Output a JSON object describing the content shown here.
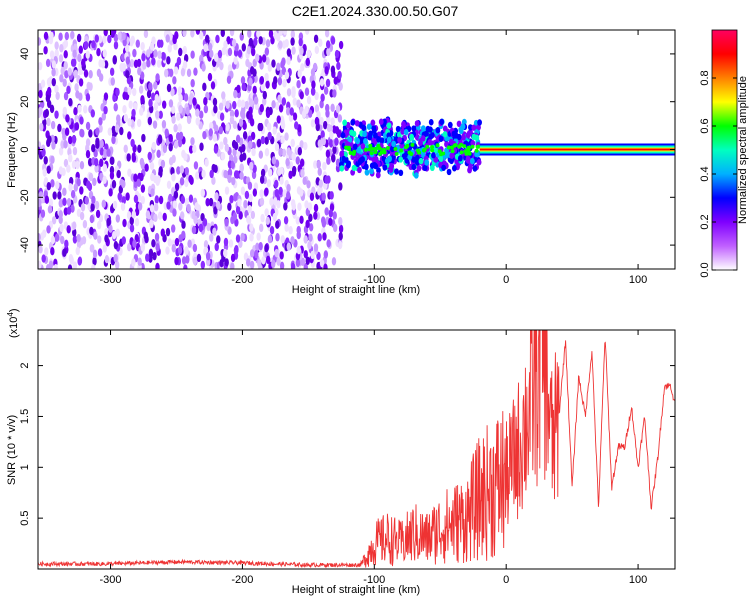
{
  "title": "C2E1.2024.330.00.50.G07",
  "chart_data": [
    {
      "type": "heatmap",
      "title": "C2E1.2024.330.00.50.G07",
      "xlabel": "Height of straight line (km)",
      "ylabel": "Frequency (Hz)",
      "xlim": [
        -355,
        128
      ],
      "ylim": [
        -50,
        50
      ],
      "xticks": [
        -300,
        -200,
        -100,
        0,
        100
      ],
      "yticks": [
        -40,
        -20,
        0,
        20,
        40
      ],
      "colorbar": {
        "label": "Normalized spectral amplitude",
        "range": [
          0.0,
          1.0
        ],
        "ticks": [
          "0.0",
          "0.2",
          "0.4",
          "0.6",
          "0.8"
        ],
        "colors": [
          "#ffffff",
          "#c060ff",
          "#7f00ff",
          "#0000ff",
          "#00b0ff",
          "#00ffc0",
          "#00ff00",
          "#ffff00",
          "#ff8000",
          "#ff0000",
          "#ff0060"
        ]
      },
      "regions": [
        {
          "name": "noise",
          "x_range": [
            -355,
            -125
          ],
          "freq_range": [
            -50,
            50
          ],
          "amplitude": 0.1
        },
        {
          "name": "transition",
          "x_range": [
            -125,
            -20
          ],
          "freq_range": [
            -10,
            12
          ],
          "amplitude": 0.3
        },
        {
          "name": "signal-line",
          "x_range": [
            -20,
            128
          ],
          "freq": 0,
          "amplitude": 0.9
        }
      ]
    },
    {
      "type": "line",
      "xlabel": "Height of straight line (km)",
      "ylabel": "SNR (10 * v/v)",
      "scale_label": "(x10",
      "scale_exp": "4",
      "scale_close": ")",
      "xlim": [
        -355,
        128
      ],
      "ylim": [
        0,
        2.35
      ],
      "xticks": [
        -300,
        -200,
        -100,
        0,
        100
      ],
      "yticks": [
        0.5,
        1.0,
        1.5,
        2.0
      ],
      "series": [
        {
          "color": "#ee3333",
          "x": [
            -355,
            -300,
            -250,
            -200,
            -150,
            -110,
            -100,
            -90,
            -80,
            -70,
            -60,
            -50,
            -40,
            -30,
            -20,
            -10,
            0,
            10,
            20,
            28,
            35,
            40,
            45,
            50,
            55,
            60,
            65,
            70,
            75,
            80,
            85,
            90,
            95,
            100,
            105,
            110,
            115,
            120,
            125,
            128
          ],
          "y": [
            0.05,
            0.05,
            0.07,
            0.06,
            0.04,
            0.04,
            0.25,
            0.3,
            0.25,
            0.35,
            0.3,
            0.4,
            0.45,
            0.5,
            0.7,
            0.8,
            0.9,
            1.2,
            1.7,
            2.3,
            1.2,
            1.5,
            2.25,
            0.8,
            1.9,
            1.5,
            2.15,
            0.6,
            2.3,
            0.8,
            1.2,
            1.2,
            1.6,
            1.0,
            1.5,
            0.6,
            1.1,
            1.8,
            1.8,
            1.6
          ]
        }
      ]
    }
  ]
}
